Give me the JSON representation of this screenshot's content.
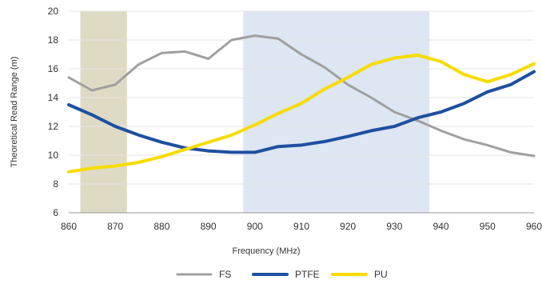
{
  "chart_data": {
    "type": "line",
    "title": "",
    "xlabel": "Frequency (MHz)",
    "ylabel": "Theoretical Read Range (m)",
    "xlim": [
      860,
      960
    ],
    "ylim": [
      6,
      20
    ],
    "xticks": [
      860,
      870,
      880,
      890,
      900,
      910,
      920,
      930,
      940,
      950,
      960
    ],
    "yticks": [
      6,
      8,
      10,
      12,
      14,
      16,
      18,
      20
    ],
    "grid": "horizontal",
    "legend": "bottom-center",
    "bands": [
      {
        "x0": 862.5,
        "x1": 872.5,
        "color": "#dedac4"
      },
      {
        "x0": 897.5,
        "x1": 937.5,
        "color": "#dde6f2"
      }
    ],
    "series": [
      {
        "name": "FS",
        "color": "#a0a0a0",
        "x": [
          860,
          865,
          870,
          875,
          880,
          885,
          890,
          895,
          900,
          905,
          910,
          915,
          920,
          925,
          930,
          935,
          940,
          945,
          950,
          955,
          960
        ],
        "values": [
          15.4,
          14.5,
          14.9,
          16.3,
          17.1,
          17.2,
          16.7,
          18.0,
          18.3,
          18.1,
          17.0,
          16.1,
          14.9,
          14.0,
          13.0,
          12.4,
          11.7,
          11.1,
          10.7,
          10.2,
          9.95
        ]
      },
      {
        "name": "PTFE",
        "color": "#1f50a0",
        "x": [
          860,
          865,
          870,
          875,
          880,
          885,
          890,
          895,
          900,
          905,
          910,
          915,
          920,
          925,
          930,
          935,
          940,
          945,
          950,
          955,
          960
        ],
        "values": [
          13.5,
          12.8,
          12.0,
          11.4,
          10.9,
          10.5,
          10.3,
          10.2,
          10.2,
          10.6,
          10.7,
          10.95,
          11.3,
          11.7,
          12.0,
          12.6,
          13.0,
          13.6,
          14.4,
          14.9,
          15.8
        ]
      },
      {
        "name": "PU",
        "color": "#f7dc00",
        "x": [
          860,
          865,
          870,
          875,
          880,
          885,
          890,
          895,
          900,
          905,
          910,
          915,
          920,
          925,
          930,
          935,
          940,
          945,
          950,
          955,
          960
        ],
        "values": [
          8.85,
          9.1,
          9.25,
          9.5,
          9.9,
          10.4,
          10.9,
          11.4,
          12.1,
          12.9,
          13.6,
          14.6,
          15.4,
          16.3,
          16.75,
          16.95,
          16.5,
          15.6,
          15.1,
          15.6,
          16.35
        ]
      }
    ]
  }
}
